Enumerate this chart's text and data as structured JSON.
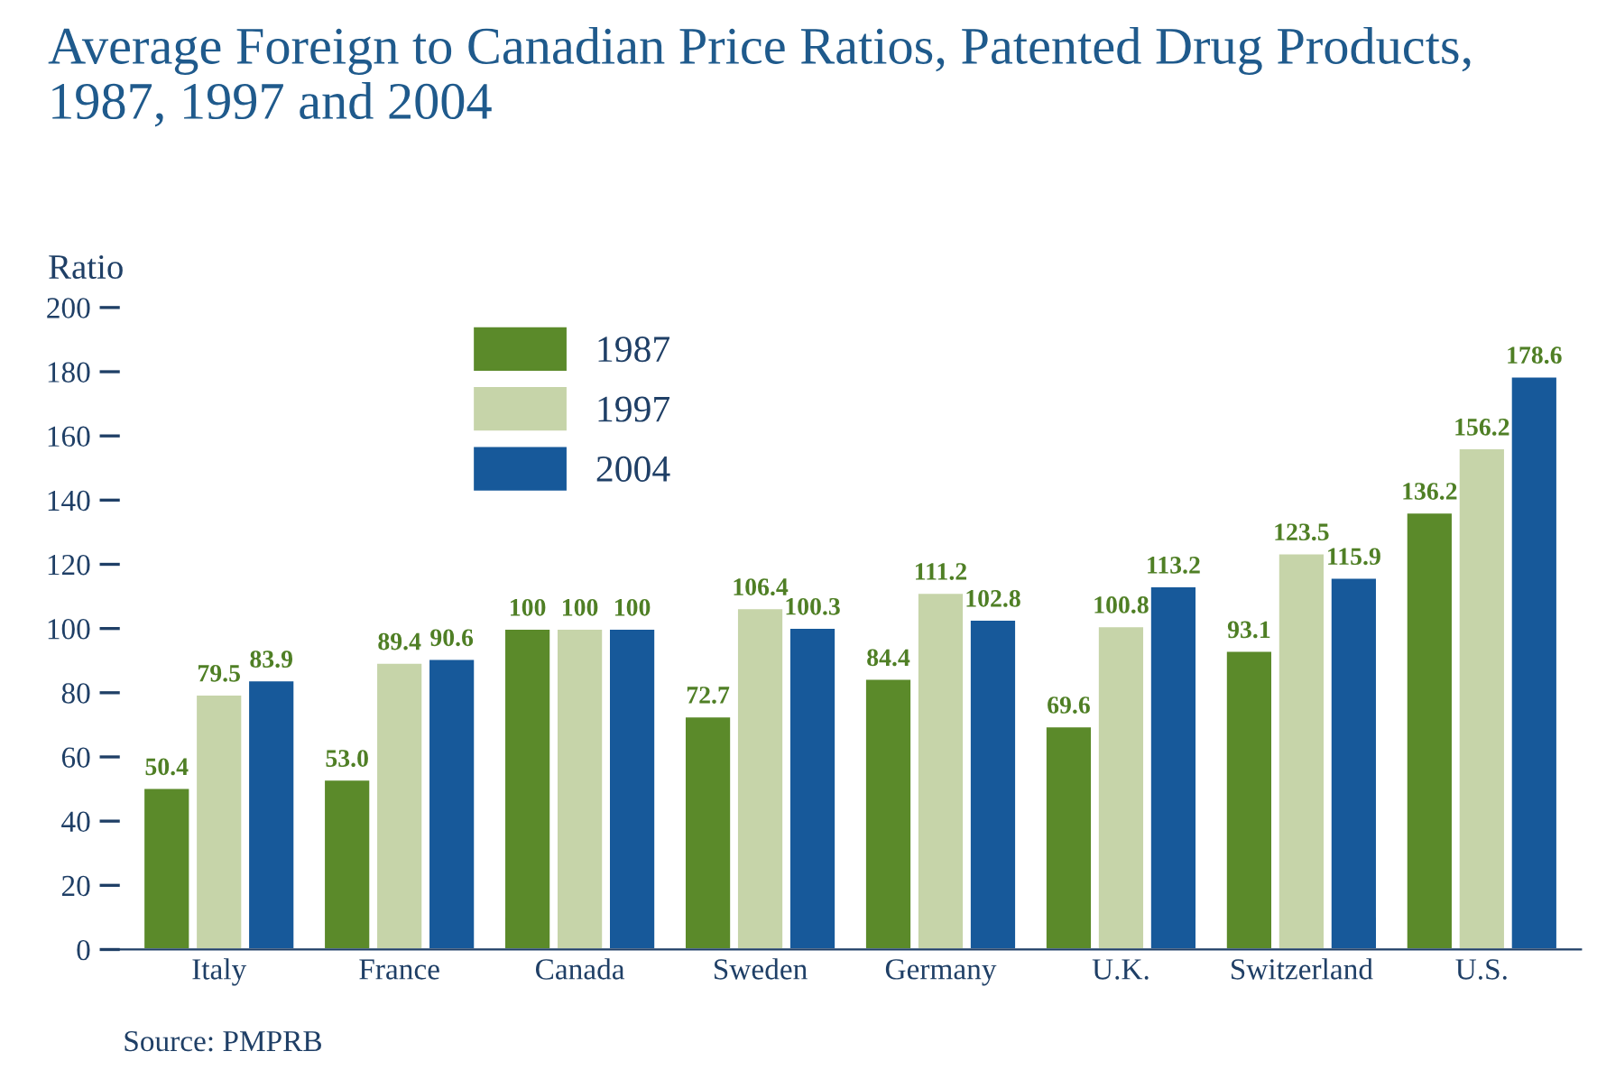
{
  "chart_data": {
    "type": "bar",
    "title": "Average Foreign to Canadian Price Ratios, Patented Drug Products,\n1987, 1997 and 2004",
    "ylabel": "Ratio",
    "categories": [
      "Italy",
      "France",
      "Canada",
      "Sweden",
      "Germany",
      "U.K.",
      "Switzerland",
      "U.S."
    ],
    "series": [
      {
        "name": "1987",
        "color": "#5b8a2a",
        "values": [
          50.4,
          53.0,
          100,
          72.7,
          84.4,
          69.6,
          93.1,
          136.2
        ],
        "value_labels": [
          "50.4",
          "53.0",
          "100",
          "72.7",
          "84.4",
          "69.6",
          "93.1",
          "136.2"
        ]
      },
      {
        "name": "1997",
        "color": "#c6d4a9",
        "values": [
          79.5,
          89.4,
          100,
          106.4,
          111.2,
          100.8,
          123.5,
          156.2
        ],
        "value_labels": [
          "79.5",
          "89.4",
          "100",
          "106.4",
          "111.2",
          "100.8",
          "123.5",
          "156.2"
        ]
      },
      {
        "name": "2004",
        "color": "#17599a",
        "values": [
          83.9,
          90.6,
          100,
          100.3,
          102.8,
          113.2,
          115.9,
          178.6
        ],
        "value_labels": [
          "83.9",
          "90.6",
          "100",
          "100.3",
          "102.8",
          "113.2",
          "115.9",
          "178.6"
        ]
      }
    ],
    "ylim": [
      0,
      200
    ],
    "yticks": [
      0,
      20,
      40,
      60,
      80,
      100,
      120,
      140,
      160,
      180,
      200
    ],
    "grid": false,
    "legend": "top left",
    "annotations": [
      "Source: PMPRB"
    ]
  }
}
